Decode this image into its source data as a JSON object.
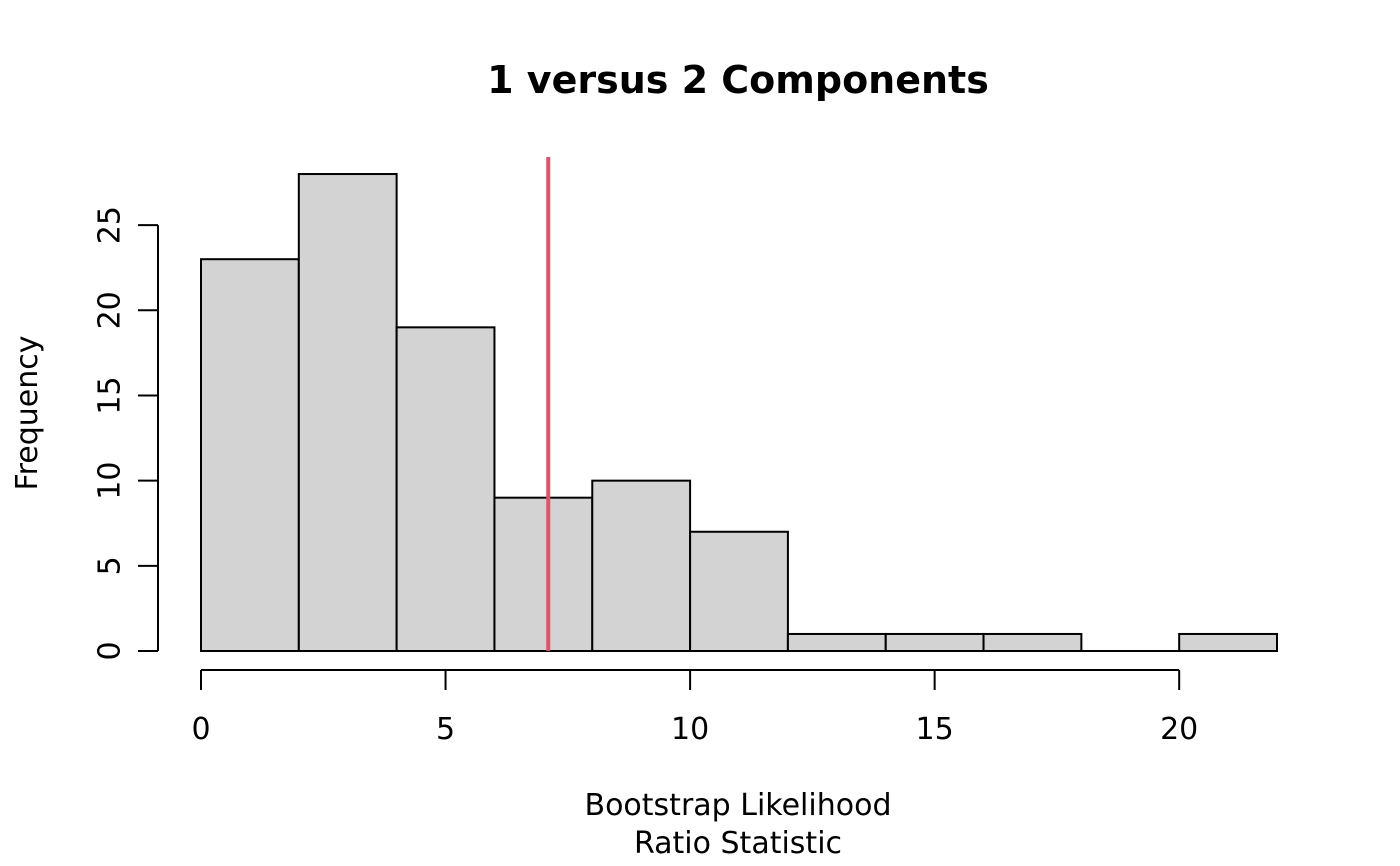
{
  "chart_data": {
    "type": "bar",
    "subtype": "histogram",
    "title": "1 versus 2 Components",
    "xlabel_lines": [
      "Bootstrap Likelihood",
      "Ratio Statistic"
    ],
    "ylabel": "Frequency",
    "bins": [
      {
        "start": 0,
        "end": 2,
        "count": 23
      },
      {
        "start": 2,
        "end": 4,
        "count": 28
      },
      {
        "start": 4,
        "end": 6,
        "count": 19
      },
      {
        "start": 6,
        "end": 8,
        "count": 9
      },
      {
        "start": 8,
        "end": 10,
        "count": 10
      },
      {
        "start": 10,
        "end": 12,
        "count": 7
      },
      {
        "start": 12,
        "end": 14,
        "count": 1
      },
      {
        "start": 14,
        "end": 16,
        "count": 1
      },
      {
        "start": 16,
        "end": 18,
        "count": 1
      },
      {
        "start": 18,
        "end": 20,
        "count": 0
      },
      {
        "start": 20,
        "end": 22,
        "count": 1
      }
    ],
    "xlim": [
      0,
      22
    ],
    "ylim": [
      0,
      29
    ],
    "xticks": [
      0,
      5,
      10,
      15,
      20
    ],
    "xtick_labels": [
      "0",
      "5",
      "10",
      "15",
      "20"
    ],
    "yticks": [
      0,
      5,
      10,
      15,
      20,
      25
    ],
    "ytick_labels": [
      "0",
      "5",
      "10",
      "15",
      "20",
      "25"
    ],
    "reference_line": {
      "x": 7.1
    },
    "grid": false,
    "colors": {
      "bar_fill": "#d3d3d3",
      "bar_stroke": "#000000",
      "reference_line": "#df536b"
    }
  }
}
